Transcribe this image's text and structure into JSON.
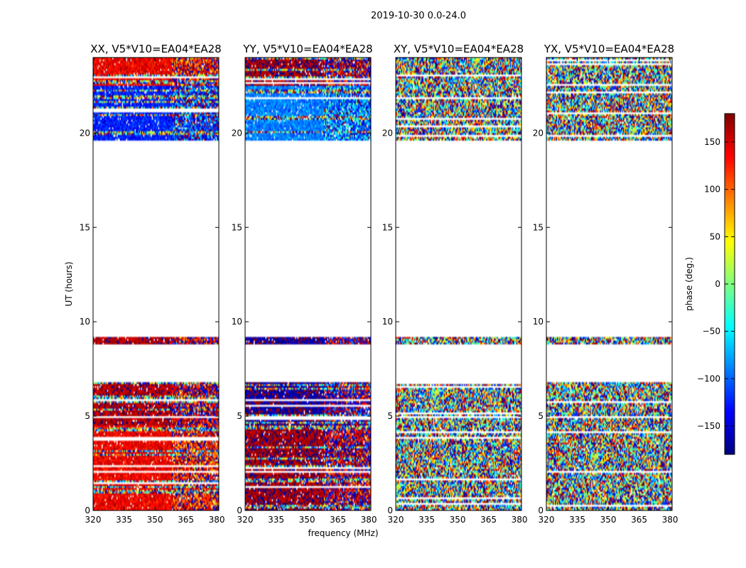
{
  "figure": {
    "suptitle": "2019-10-30 0.0-24.0",
    "xlabel": "frequency (MHz)",
    "ylabel": "UT (hours)"
  },
  "colorbar": {
    "label": "phase (deg.)",
    "range": [
      -180,
      180
    ],
    "ticks": [
      150,
      100,
      50,
      0,
      -50,
      -100,
      -150
    ],
    "tick_labels": [
      "150",
      "100",
      "50",
      "0",
      "−50",
      "−100",
      "−150"
    ],
    "colormap": "jet"
  },
  "chart_data": [
    {
      "type": "heatmap",
      "title": "XX, V5*V10=EA04*EA28",
      "xlim": [
        320,
        381
      ],
      "ylim": [
        0,
        24
      ],
      "xticks": [
        "320",
        "335",
        "350",
        "365",
        "380"
      ],
      "yticks": [
        "0",
        "5",
        "10",
        "15",
        "20"
      ],
      "description_mode": "coherent",
      "dominant_phase": {
        "low": 140,
        "upper": 165,
        "top_band": -125
      }
    },
    {
      "type": "heatmap",
      "title": "YY, V5*V10=EA04*EA28",
      "xlim": [
        320,
        381
      ],
      "ylim": [
        0,
        24
      ],
      "xticks": [
        "320",
        "335",
        "350",
        "365",
        "380"
      ],
      "yticks": [
        "0",
        "5",
        "10",
        "15",
        "20"
      ],
      "description_mode": "coherent",
      "dominant_phase": {
        "low": 170,
        "upper": -170,
        "top_band": -90
      }
    },
    {
      "type": "heatmap",
      "title": "XY, V5*V10=EA04*EA28",
      "xlim": [
        320,
        381
      ],
      "ylim": [
        0,
        24
      ],
      "xticks": [
        "320",
        "335",
        "350",
        "365",
        "380"
      ],
      "yticks": [
        "0",
        "5",
        "10",
        "15",
        "20"
      ],
      "description_mode": "noise"
    },
    {
      "type": "heatmap",
      "title": "YX, V5*V10=EA04*EA28",
      "xlim": [
        320,
        381
      ],
      "ylim": [
        0,
        24
      ],
      "xticks": [
        "320",
        "335",
        "350",
        "365",
        "380"
      ],
      "yticks": [
        "0",
        "5",
        "10",
        "15",
        "20"
      ],
      "description_mode": "noise"
    }
  ],
  "data_coverage_ut_hours": [
    [
      0.0,
      4.9
    ],
    [
      5.0,
      6.85
    ],
    [
      8.8,
      9.2
    ],
    [
      19.6,
      24.0
    ]
  ]
}
